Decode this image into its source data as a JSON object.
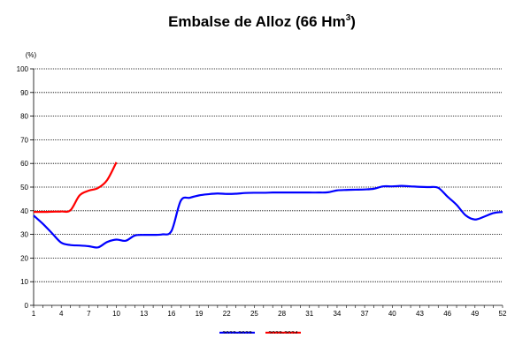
{
  "chart_data": {
    "type": "line",
    "title": {
      "main": "Embalse de Alloz (66 Hm",
      "sup": "3",
      "close": ")"
    },
    "ylabel": "(%)",
    "xlabel": "",
    "ylim": [
      0,
      100
    ],
    "yticks": [
      0,
      10,
      20,
      30,
      40,
      50,
      60,
      70,
      80,
      90,
      100
    ],
    "xlim": [
      1,
      52
    ],
    "xticks": [
      1,
      4,
      7,
      10,
      13,
      16,
      19,
      22,
      25,
      28,
      31,
      34,
      37,
      40,
      43,
      46,
      49,
      52
    ],
    "grid": true,
    "legend": "bottom-center",
    "series": [
      {
        "name": "2022-2023",
        "color": "#0000ff",
        "x": [
          1,
          2,
          3,
          4,
          5,
          6,
          7,
          8,
          9,
          10,
          11,
          12,
          13,
          14,
          15,
          16,
          17,
          18,
          19,
          20,
          21,
          22,
          23,
          24,
          25,
          26,
          27,
          28,
          29,
          30,
          31,
          32,
          33,
          34,
          35,
          36,
          37,
          38,
          39,
          40,
          41,
          42,
          43,
          44,
          45,
          46,
          47,
          48,
          49,
          50,
          51,
          52
        ],
        "values": [
          38,
          34.5,
          30.5,
          26.5,
          25.5,
          25.3,
          25,
          24.5,
          26.8,
          27.8,
          27.3,
          29.5,
          29.8,
          29.8,
          30,
          31.5,
          44.2,
          45.5,
          46.5,
          47,
          47.3,
          47.1,
          47.2,
          47.5,
          47.6,
          47.6,
          47.7,
          47.7,
          47.7,
          47.7,
          47.7,
          47.7,
          47.8,
          48.6,
          48.8,
          48.9,
          49,
          49.3,
          50.3,
          50.3,
          50.5,
          50.3,
          50.1,
          50,
          49.7,
          46,
          42.5,
          38,
          36.3,
          37.5,
          39,
          39.5
        ]
      },
      {
        "name": "2023-2024",
        "color": "#ff0000",
        "x": [
          1,
          2,
          3,
          4,
          5,
          6,
          7,
          8,
          9,
          10
        ],
        "values": [
          39.5,
          39.5,
          39.6,
          39.7,
          40.2,
          46.5,
          48.5,
          49.6,
          53,
          60.5
        ]
      }
    ]
  }
}
